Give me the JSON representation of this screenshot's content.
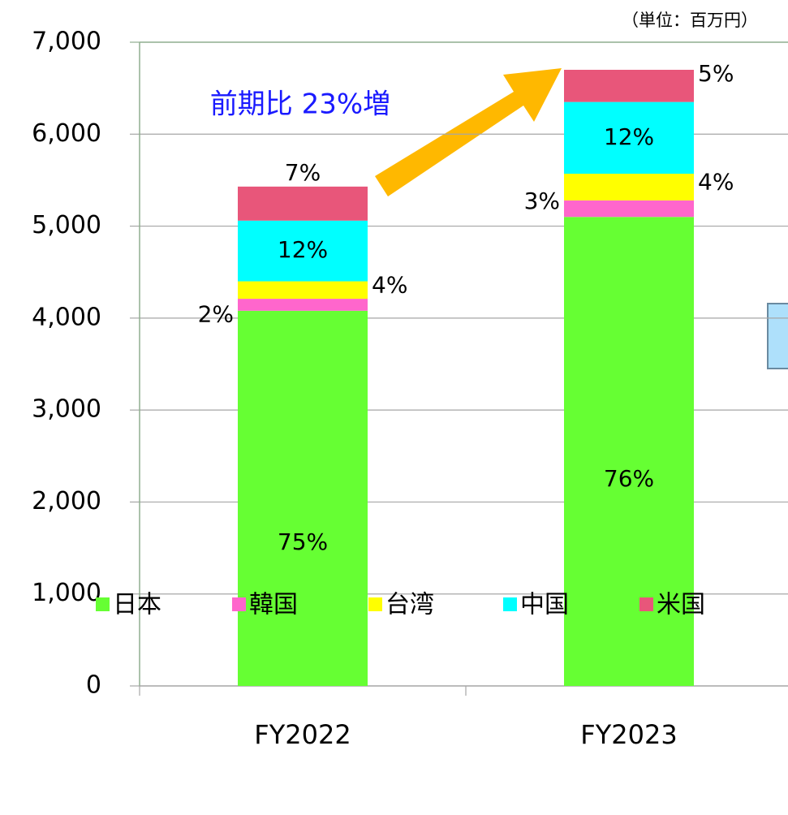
{
  "chart_data": {
    "type": "stacked_bar",
    "unit_note": "（単位：百万円）",
    "annotation": "前期比 23%増",
    "categories": [
      "FY2022",
      "FY2023"
    ],
    "series": [
      {
        "name": "日本",
        "color": "#66ff33",
        "values": [
          4080,
          5100
        ],
        "labels": [
          "75%",
          "76%"
        ]
      },
      {
        "name": "韓国",
        "color": "#ff66cc",
        "values": [
          130,
          180
        ],
        "labels": [
          "2%",
          "3%"
        ]
      },
      {
        "name": "台湾",
        "color": "#ffff00",
        "values": [
          190,
          290
        ],
        "labels": [
          "4%",
          "4%"
        ]
      },
      {
        "name": "中国",
        "color": "#00ffff",
        "values": [
          660,
          780
        ],
        "labels": [
          "12%",
          "12%"
        ]
      },
      {
        "name": "米国",
        "color": "#e8567a",
        "values": [
          370,
          350
        ],
        "labels": [
          "7%",
          "5%"
        ]
      }
    ],
    "ylim": [
      0,
      7000
    ],
    "yticks": [
      0,
      {
        "value": 1000,
        "label": "1,000"
      },
      {
        "value": 2000,
        "label": "2,000"
      },
      {
        "value": 3000,
        "label": "3,000"
      },
      {
        "value": 4000,
        "label": "4,000"
      },
      {
        "value": 5000,
        "label": "5,000"
      },
      {
        "value": 6000,
        "label": "6,000"
      },
      {
        "value": 7000,
        "label": "7,000"
      }
    ],
    "grid": true,
    "legend": "bottom"
  }
}
